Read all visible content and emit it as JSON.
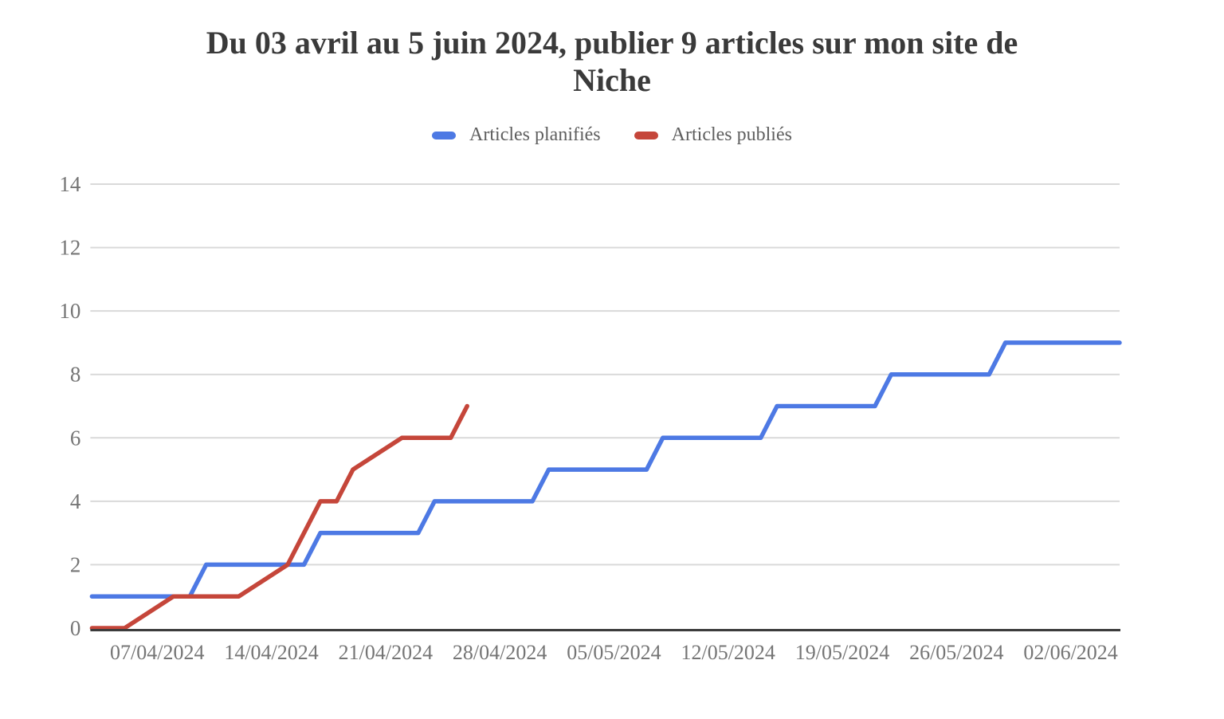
{
  "page": {
    "background": "#ffffff"
  },
  "title": {
    "text": "Du 03 avril au 5 juin 2024, publier 9 articles sur mon site de Niche",
    "line1": "Du 03 avril au 5 juin 2024, publier 9 articles sur mon site de",
    "line2": "Niche",
    "color": "#3a3a3a"
  },
  "legend": {
    "position": "top",
    "items": [
      {
        "label": "Articles planifiés",
        "color": "#4d79e4"
      },
      {
        "label": "Articles publiés",
        "color": "#c5463a"
      }
    ]
  },
  "chart_data": {
    "type": "line",
    "subtype": "stepped cumulative daily line chart",
    "title": "Du 03 avril au 5 juin 2024, publier 9 articles sur mon site de Niche",
    "xlabel": "",
    "ylabel": "",
    "grid": "horizontal only",
    "legend_position": "top",
    "x_axis": {
      "unit": "date (day offset from start)",
      "start_date": "03/04/2024",
      "end_date": "05/06/2024",
      "total_days": 63,
      "ticks": [
        {
          "day": 4,
          "label": "07/04/2024"
        },
        {
          "day": 11,
          "label": "14/04/2024"
        },
        {
          "day": 18,
          "label": "21/04/2024"
        },
        {
          "day": 25,
          "label": "28/04/2024"
        },
        {
          "day": 32,
          "label": "05/05/2024"
        },
        {
          "day": 39,
          "label": "12/05/2024"
        },
        {
          "day": 46,
          "label": "19/05/2024"
        },
        {
          "day": 53,
          "label": "26/05/2024"
        },
        {
          "day": 60,
          "label": "02/06/2024"
        }
      ]
    },
    "y_axis": {
      "range": [
        0,
        14
      ],
      "ticks": [
        0,
        2,
        4,
        6,
        8,
        10,
        12,
        14
      ]
    },
    "series": [
      {
        "name": "Articles planifiés",
        "color": "#4d79e4",
        "points": [
          {
            "day": 0,
            "date": "03/04/2024",
            "value": 1
          },
          {
            "day": 6,
            "date": "09/04/2024",
            "value": 1
          },
          {
            "day": 7,
            "date": "10/04/2024",
            "value": 2
          },
          {
            "day": 13,
            "date": "16/04/2024",
            "value": 2
          },
          {
            "day": 14,
            "date": "17/04/2024",
            "value": 3
          },
          {
            "day": 20,
            "date": "23/04/2024",
            "value": 3
          },
          {
            "day": 21,
            "date": "24/04/2024",
            "value": 4
          },
          {
            "day": 27,
            "date": "30/04/2024",
            "value": 4
          },
          {
            "day": 28,
            "date": "01/05/2024",
            "value": 5
          },
          {
            "day": 34,
            "date": "07/05/2024",
            "value": 5
          },
          {
            "day": 35,
            "date": "08/05/2024",
            "value": 6
          },
          {
            "day": 41,
            "date": "14/05/2024",
            "value": 6
          },
          {
            "day": 42,
            "date": "15/05/2024",
            "value": 7
          },
          {
            "day": 48,
            "date": "21/05/2024",
            "value": 7
          },
          {
            "day": 49,
            "date": "22/05/2024",
            "value": 8
          },
          {
            "day": 55,
            "date": "28/05/2024",
            "value": 8
          },
          {
            "day": 56,
            "date": "29/05/2024",
            "value": 9
          },
          {
            "day": 63,
            "date": "05/06/2024",
            "value": 9
          }
        ]
      },
      {
        "name": "Articles publiés",
        "color": "#c5463a",
        "points": [
          {
            "day": 0,
            "date": "03/04/2024",
            "value": 0
          },
          {
            "day": 2,
            "date": "05/04/2024",
            "value": 0
          },
          {
            "day": 5,
            "date": "08/04/2024",
            "value": 1
          },
          {
            "day": 9,
            "date": "12/04/2024",
            "value": 1
          },
          {
            "day": 12,
            "date": "15/04/2024",
            "value": 2
          },
          {
            "day": 13,
            "date": "16/04/2024",
            "value": 3
          },
          {
            "day": 14,
            "date": "17/04/2024",
            "value": 4
          },
          {
            "day": 15,
            "date": "18/04/2024",
            "value": 4
          },
          {
            "day": 16,
            "date": "19/04/2024",
            "value": 5
          },
          {
            "day": 19,
            "date": "22/04/2024",
            "value": 6
          },
          {
            "day": 22,
            "date": "25/04/2024",
            "value": 6
          },
          {
            "day": 23,
            "date": "26/04/2024",
            "value": 7
          }
        ]
      }
    ],
    "styles": {
      "grid_color": "#d9d9d9",
      "baseline_color": "#3c3c3c",
      "axis_label_color": "#757575",
      "line_width": 5.5
    }
  }
}
